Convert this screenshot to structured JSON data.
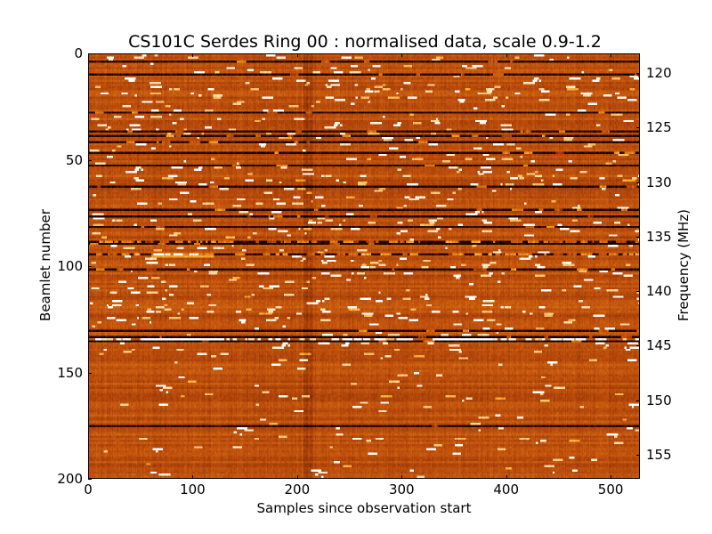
{
  "chart_data": {
    "type": "heatmap",
    "title": "CS101C Serdes Ring 00 : normalised data, scale 0.9-1.2",
    "xlabel": "Samples since observation start",
    "ylabel": "Beamlet number",
    "y2label": "Frequency (MHz)",
    "xlim": [
      0,
      528
    ],
    "ylim": [
      200,
      0
    ],
    "y2lim": [
      157.2,
      118.2
    ],
    "color_scale": [
      0.9,
      1.2
    ],
    "x_ticks": [
      "0",
      "100",
      "200",
      "300",
      "400",
      "500"
    ],
    "x_tick_values": [
      0,
      100,
      200,
      300,
      400,
      500
    ],
    "y_ticks": [
      "0",
      "50",
      "100",
      "150",
      "200"
    ],
    "y_tick_values": [
      0,
      50,
      100,
      150,
      200
    ],
    "y2_ticks": [
      "120",
      "125",
      "130",
      "135",
      "140",
      "145",
      "150",
      "155"
    ],
    "y2_tick_values": [
      120,
      125,
      130,
      135,
      140,
      145,
      150,
      155
    ],
    "rows": 200,
    "cols": 528,
    "typical_value": 1.05,
    "dark_rows": [
      3,
      9,
      27,
      36,
      38,
      41,
      46,
      52,
      62,
      73,
      76,
      81,
      88,
      89,
      94,
      101,
      130,
      133,
      135,
      175
    ],
    "bright_rows": [
      88,
      94,
      134
    ],
    "colors": {
      "low": "#000000",
      "mid": "#c0500e",
      "high": "#ffffff"
    }
  }
}
